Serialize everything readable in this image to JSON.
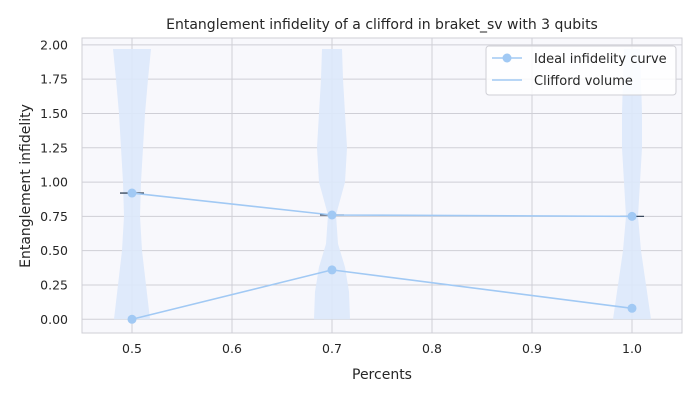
{
  "chart_data": {
    "type": "line",
    "title": "Entanglement infidelity of a clifford in braket_sv with 3 qubits",
    "xlabel": "Percents",
    "ylabel": "Entanglement infidelity",
    "xlim": [
      0.45,
      1.05
    ],
    "ylim": [
      -0.1,
      2.05
    ],
    "xticks": [
      0.5,
      0.6,
      0.7,
      0.8,
      0.9,
      1.0
    ],
    "xtick_labels": [
      "0.5",
      "0.6",
      "0.7",
      "0.8",
      "0.9",
      "1.0"
    ],
    "yticks": [
      0,
      0.25,
      0.5,
      0.75,
      1.0,
      1.25,
      1.5,
      1.75,
      2.0
    ],
    "ytick_labels": [
      "0.00",
      "0.25",
      "0.50",
      "0.75",
      "1.00",
      "1.25",
      "1.50",
      "1.75",
      "2.00"
    ],
    "grid": true,
    "legend_position": "top-right",
    "colors": {
      "series": "#a1c9f4",
      "violin": "#dce8fb",
      "plot_bg": "#f8f8fc",
      "grid": "#cfcfd6",
      "median_tick": "#3a4a5e"
    },
    "series": [
      {
        "name": "Ideal infidelity curve",
        "marker": "circle",
        "x": [
          0.5,
          0.7,
          1.0
        ],
        "y": [
          0.92,
          0.76,
          0.75
        ]
      },
      {
        "name": "Clifford volume",
        "marker": "circle",
        "x": [
          0.5,
          0.7,
          1.0
        ],
        "y": [
          0.0,
          0.36,
          0.08
        ]
      }
    ],
    "violins": [
      {
        "x": 0.5,
        "median": 0.92,
        "profile": [
          [
            0.0,
            0.018
          ],
          [
            0.25,
            0.014
          ],
          [
            0.5,
            0.01
          ],
          [
            0.75,
            0.008
          ],
          [
            1.0,
            0.009
          ],
          [
            1.25,
            0.011
          ],
          [
            1.5,
            0.013
          ],
          [
            1.75,
            0.016
          ],
          [
            1.97,
            0.019
          ]
        ]
      },
      {
        "x": 0.7,
        "median": 0.76,
        "profile": [
          [
            0.0,
            0.018
          ],
          [
            0.2,
            0.017
          ],
          [
            0.38,
            0.013
          ],
          [
            0.55,
            0.006
          ],
          [
            0.76,
            0.004
          ],
          [
            1.0,
            0.013
          ],
          [
            1.25,
            0.015
          ],
          [
            1.5,
            0.013
          ],
          [
            1.75,
            0.011
          ],
          [
            1.97,
            0.01
          ]
        ]
      },
      {
        "x": 1.0,
        "median": 0.75,
        "profile": [
          [
            0.0,
            0.019
          ],
          [
            0.25,
            0.014
          ],
          [
            0.5,
            0.009
          ],
          [
            0.75,
            0.006
          ],
          [
            1.0,
            0.008
          ],
          [
            1.25,
            0.01
          ],
          [
            1.5,
            0.01
          ],
          [
            1.75,
            0.009
          ],
          [
            1.97,
            0.008
          ]
        ]
      }
    ]
  }
}
